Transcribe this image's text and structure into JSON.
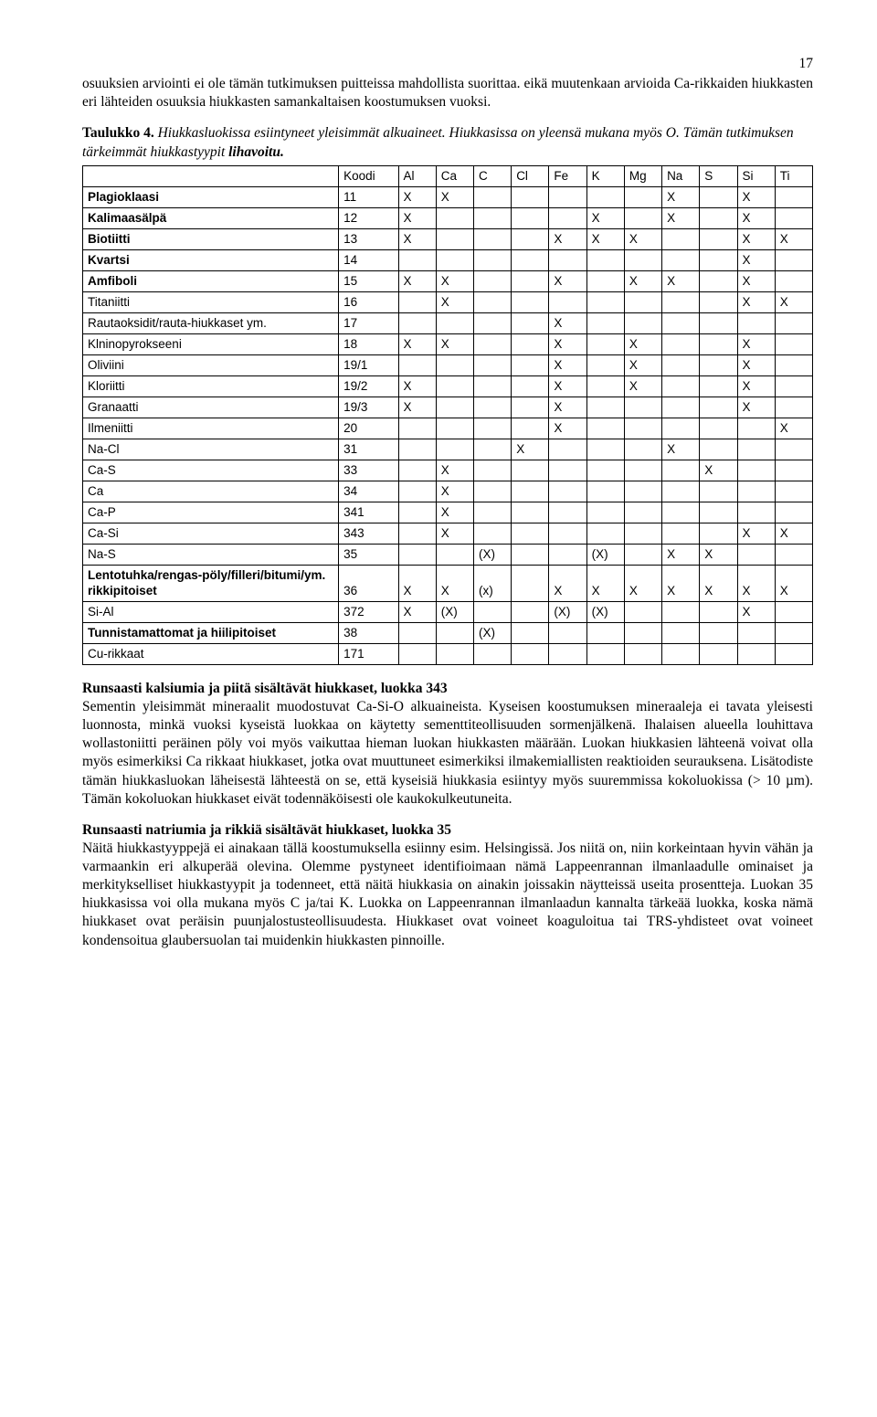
{
  "page_number": "17",
  "para1": "osuuksien arviointi ei ole tämän tutkimuksen puitteissa mahdollista suorittaa. eikä muutenkaan arvioida Ca-rikkaiden hiukkasten eri lähteiden osuuksia hiukkasten samankaltaisen koostumuksen vuoksi.",
  "caption": {
    "label": "Taulukko 4.",
    "text1": " Hiukkasluokissa esiintyneet yleisimmät alkuaineet. Hiukkasissa on yleensä mukana myös O. Tämän tutkimuksen tärkeimmät hiukkastyypit ",
    "bold_italic": "lihavoitu.",
    "text2": ""
  },
  "table": {
    "columns": [
      "",
      "Koodi",
      "Al",
      "Ca",
      "C",
      "Cl",
      "Fe",
      "K",
      "Mg",
      "Na",
      "S",
      "Si",
      "Ti"
    ],
    "col_widths": [
      "220px",
      "54px",
      "34px",
      "34px",
      "34px",
      "34px",
      "34px",
      "34px",
      "34px",
      "34px",
      "34px",
      "34px",
      "34px"
    ],
    "rows": [
      {
        "bold": true,
        "cells": [
          "Plagioklaasi",
          "11",
          "X",
          "X",
          "",
          "",
          "",
          "",
          "",
          "X",
          "",
          "X",
          ""
        ]
      },
      {
        "bold": true,
        "cells": [
          "Kalimaasälpä",
          "12",
          "X",
          "",
          "",
          "",
          "",
          "X",
          "",
          "X",
          "",
          "X",
          ""
        ]
      },
      {
        "bold": true,
        "cells": [
          "Biotiitti",
          "13",
          "X",
          "",
          "",
          "",
          "X",
          "X",
          "X",
          "",
          "",
          "X",
          "X"
        ]
      },
      {
        "bold": true,
        "cells": [
          "Kvartsi",
          "14",
          "",
          "",
          "",
          "",
          "",
          "",
          "",
          "",
          "",
          "X",
          ""
        ]
      },
      {
        "bold": true,
        "cells": [
          "Amfiboli",
          "15",
          "X",
          "X",
          "",
          "",
          "X",
          "",
          "X",
          "X",
          "",
          "X",
          ""
        ]
      },
      {
        "bold": false,
        "cells": [
          "Titaniitti",
          "16",
          "",
          "X",
          "",
          "",
          "",
          "",
          "",
          "",
          "",
          "X",
          "X"
        ]
      },
      {
        "bold": false,
        "cells": [
          "Rautaoksidit/rauta-hiukkaset ym.",
          "17",
          "",
          "",
          "",
          "",
          "X",
          "",
          "",
          "",
          "",
          "",
          ""
        ]
      },
      {
        "bold": false,
        "cells": [
          "Klninopyrokseeni",
          "18",
          "X",
          "X",
          "",
          "",
          "X",
          "",
          "X",
          "",
          "",
          "X",
          ""
        ]
      },
      {
        "bold": false,
        "cells": [
          "Oliviini",
          "19/1",
          "",
          "",
          "",
          "",
          "X",
          "",
          "X",
          "",
          "",
          "X",
          ""
        ]
      },
      {
        "bold": false,
        "cells": [
          "Kloriitti",
          "19/2",
          "X",
          "",
          "",
          "",
          "X",
          "",
          "X",
          "",
          "",
          "X",
          ""
        ]
      },
      {
        "bold": false,
        "cells": [
          "Granaatti",
          "19/3",
          "X",
          "",
          "",
          "",
          "X",
          "",
          "",
          "",
          "",
          "X",
          ""
        ]
      },
      {
        "bold": false,
        "cells": [
          "Ilmeniitti",
          "20",
          "",
          "",
          "",
          "",
          "X",
          "",
          "",
          "",
          "",
          "",
          "X"
        ]
      },
      {
        "bold": false,
        "cells": [
          "Na-Cl",
          "31",
          "",
          "",
          "",
          "X",
          "",
          "",
          "",
          "X",
          "",
          "",
          ""
        ]
      },
      {
        "bold": false,
        "cells": [
          "Ca-S",
          "33",
          "",
          "X",
          "",
          "",
          "",
          "",
          "",
          "",
          "X",
          "",
          ""
        ]
      },
      {
        "bold": false,
        "cells": [
          "Ca",
          "34",
          "",
          "X",
          "",
          "",
          "",
          "",
          "",
          "",
          "",
          "",
          ""
        ]
      },
      {
        "bold": false,
        "cells": [
          "Ca-P",
          "341",
          "",
          "X",
          "",
          "",
          "",
          "",
          "",
          "",
          "",
          "",
          ""
        ]
      },
      {
        "bold": false,
        "cells": [
          "Ca-Si",
          "343",
          "",
          "X",
          "",
          "",
          "",
          "",
          "",
          "",
          "",
          "X",
          "X"
        ]
      },
      {
        "bold": false,
        "cells": [
          "Na-S",
          "35",
          "",
          "",
          "(X)",
          "",
          "",
          "(X)",
          "",
          "X",
          "X",
          "",
          ""
        ]
      },
      {
        "bold": true,
        "cells": [
          "Lentotuhka/rengas-pöly/filleri/bitumi/ym. rikkipitoiset",
          "36",
          "X",
          "X",
          "(x)",
          "",
          "X",
          "X",
          "X",
          "X",
          "X",
          "X",
          "X"
        ]
      },
      {
        "bold": false,
        "cells": [
          "Si-Al",
          "372",
          "X",
          "(X)",
          "",
          "",
          "(X)",
          "(X)",
          "",
          "",
          "",
          "X",
          ""
        ]
      },
      {
        "bold": true,
        "cells": [
          "Tunnistamattomat ja hiilipitoiset",
          "38",
          "",
          "",
          "(X)",
          "",
          "",
          "",
          "",
          "",
          "",
          "",
          ""
        ]
      },
      {
        "bold": false,
        "cells": [
          "Cu-rikkaat",
          "171",
          "",
          "",
          "",
          "",
          "",
          "",
          "",
          "",
          "",
          "",
          ""
        ]
      }
    ]
  },
  "heading1": "Runsaasti kalsiumia ja piitä sisältävät hiukkaset, luokka 343",
  "para2": "Sementin yleisimmät mineraalit muodostuvat Ca-Si-O alkuaineista. Kyseisen koostumuksen mineraaleja ei tavata yleisesti luonnosta, minkä vuoksi kyseistä luokkaa on käytetty sementtiteollisuuden sormenjälkenä. Ihalaisen alueella louhittava wollastoniitti peräinen pöly voi myös vaikuttaa hieman luokan hiukkasten määrään. Luokan hiukkasien lähteenä voivat olla myös esimerkiksi Ca rikkaat hiukkaset, jotka ovat muuttuneet esimerkiksi ilmakemiallisten reaktioiden seurauksena. Lisätodiste tämän hiukkasluokan läheisestä lähteestä on se, että kyseisiä hiukkasia esiintyy myös suuremmissa kokoluokissa (> 10 µm). Tämän kokoluokan hiukkaset eivät todennäköisesti ole kaukokulkeutuneita.",
  "heading2": "Runsaasti natriumia ja rikkiä sisältävät hiukkaset, luokka 35",
  "para3": "Näitä hiukkastyyppejä ei ainakaan tällä koostumuksella esiinny esim. Helsingissä. Jos niitä on, niin korkeintaan hyvin vähän ja varmaankin eri alkuperää olevina. Olemme pystyneet identifioimaan nämä Lappeenrannan ilmanlaadulle ominaiset ja merkitykselliset hiukkastyypit ja todenneet, että näitä hiukkasia on ainakin joissakin näytteissä useita prosentteja. Luokan 35 hiukkasissa voi olla mukana myös C ja/tai K. Luokka on Lappeenrannan ilmanlaadun kannalta tärkeää luokka, koska nämä hiukkaset ovat peräisin puunjalostusteollisuudesta. Hiukkaset ovat voineet koaguloitua tai TRS-yhdisteet ovat voineet kondensoitua glaubersuolan tai muidenkin hiukkasten pinnoille."
}
